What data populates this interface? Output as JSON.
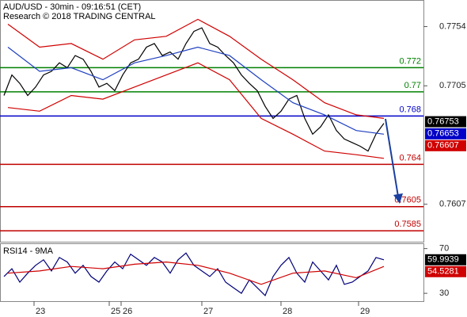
{
  "chart_data": [
    {
      "type": "line",
      "title": "AUD/USD - 30min - 09:16:51 (CET)",
      "subtitle": "Research © 2018 TRADING CENTRAL",
      "xlim": [
        0,
        53.5
      ],
      "xticks": [
        {
          "value": 4.3,
          "label": "23"
        },
        {
          "value": 13.8,
          "label": "25"
        },
        {
          "value": 15.3,
          "label": "26"
        },
        {
          "value": 25.5,
          "label": "27"
        },
        {
          "value": 35.5,
          "label": "28"
        },
        {
          "value": 45.3,
          "label": "29"
        }
      ],
      "ylim": [
        0.7576,
        0.7776
      ],
      "yticks": [
        0.7754,
        0.7705,
        0.7607
      ],
      "series": [
        {
          "color": "#000000",
          "x": [
            0.5,
            1.5,
            2.5,
            3.5,
            4.5,
            5.5,
            6.5,
            7.5,
            8.5,
            9.5,
            10.5,
            11.5,
            12.5,
            13.5,
            14.5,
            15.5,
            16.5,
            17.5,
            18.5,
            19.5,
            20.5,
            21.5,
            22.5,
            23.5,
            24.5,
            25.5,
            26.5,
            27.5,
            28.5,
            29.5,
            30.5,
            31.5,
            32.5,
            33.5,
            34.5,
            35.5,
            36.5,
            37.5,
            38.5,
            39.5,
            40.5,
            41.5,
            42.5,
            43.5,
            44.5,
            45.5,
            46.5,
            47.5,
            48.5
          ],
          "values": [
            0.7697,
            0.7714,
            0.7707,
            0.7697,
            0.7704,
            0.7714,
            0.7717,
            0.7724,
            0.772,
            0.773,
            0.7727,
            0.7717,
            0.7704,
            0.7707,
            0.7701,
            0.7714,
            0.7724,
            0.7727,
            0.7737,
            0.774,
            0.773,
            0.7733,
            0.7727,
            0.774,
            0.775,
            0.7753,
            0.774,
            0.7737,
            0.773,
            0.7724,
            0.7714,
            0.7707,
            0.7701,
            0.7688,
            0.7678,
            0.7684,
            0.7694,
            0.7697,
            0.7678,
            0.7665,
            0.7671,
            0.7681,
            0.7668,
            0.7661,
            0.7658,
            0.7655,
            0.7651,
            0.7665,
            0.7674
          ]
        },
        {
          "color": "#d00000",
          "x": [
            1,
            5,
            9,
            13,
            17,
            21,
            25,
            29,
            33,
            37,
            41,
            45,
            48.5
          ],
          "values": [
            0.7756,
            0.7737,
            0.774,
            0.7727,
            0.7743,
            0.7746,
            0.776,
            0.7746,
            0.7727,
            0.771,
            0.7691,
            0.7681,
            0.7678
          ]
        },
        {
          "color": "#2040c0",
          "x": [
            1,
            5,
            9,
            13,
            17,
            21,
            25,
            29,
            33,
            37,
            41,
            45,
            48.5
          ],
          "values": [
            0.7737,
            0.7717,
            0.772,
            0.771,
            0.7724,
            0.773,
            0.7737,
            0.773,
            0.771,
            0.7691,
            0.7681,
            0.7668,
            0.7665
          ]
        },
        {
          "color": "#d00000",
          "x": [
            1,
            5,
            9,
            13,
            17,
            21,
            25,
            29,
            33,
            37,
            41,
            45,
            48.5
          ],
          "values": [
            0.7687,
            0.7684,
            0.7697,
            0.7694,
            0.7704,
            0.7714,
            0.7724,
            0.771,
            0.7678,
            0.7665,
            0.7651,
            0.7648,
            0.7645
          ]
        }
      ],
      "levels": [
        {
          "value": 0.772,
          "color": "#008000"
        },
        {
          "value": 0.77,
          "color": "#008000"
        },
        {
          "value": 0.768,
          "color": "#0000c8"
        },
        {
          "value": 0.764,
          "color": "#c00000"
        },
        {
          "value": 0.7605,
          "color": "#c00000"
        },
        {
          "value": 0.7585,
          "color": "#c00000"
        }
      ],
      "last_values": [
        {
          "value": 0.76753,
          "color": "#000000"
        },
        {
          "value": 0.76653,
          "color": "#0000c8"
        },
        {
          "value": 0.76607,
          "color": "#d00000"
        }
      ]
    },
    {
      "type": "line",
      "title": "RSI14 - 9MA",
      "xlim": [
        0,
        53.5
      ],
      "ylim": [
        23,
        74
      ],
      "yticks": [
        70,
        30
      ],
      "series": [
        {
          "color": "#00007a",
          "x": [
            0.5,
            1.5,
            2.5,
            3.5,
            4.5,
            5.5,
            6.5,
            7.5,
            8.5,
            9.5,
            10.5,
            11.5,
            12.5,
            13.5,
            14.5,
            15.5,
            16.5,
            17.5,
            18.5,
            19.5,
            20.5,
            21.5,
            22.5,
            23.5,
            24.5,
            25.5,
            26.5,
            27.5,
            28.5,
            29.5,
            30.5,
            31.5,
            32.5,
            33.5,
            34.5,
            35.5,
            36.5,
            37.5,
            38.5,
            39.5,
            40.5,
            41.5,
            42.5,
            43.5,
            44.5,
            45.5,
            46.5,
            47.5,
            48.5
          ],
          "values": [
            45,
            52,
            40,
            48,
            55,
            60,
            50,
            62,
            58,
            48,
            55,
            45,
            40,
            50,
            58,
            52,
            65,
            60,
            55,
            62,
            58,
            48,
            60,
            66,
            55,
            50,
            45,
            52,
            40,
            35,
            30,
            42,
            35,
            28,
            45,
            55,
            62,
            48,
            40,
            58,
            50,
            42,
            55,
            38,
            40,
            45,
            50,
            62,
            60
          ]
        },
        {
          "color": "#d00000",
          "x": [
            1,
            5,
            9,
            13,
            17,
            21,
            25,
            29,
            33,
            37,
            41,
            45,
            48.5
          ],
          "values": [
            48,
            50,
            54,
            52,
            56,
            58,
            55,
            48,
            38,
            48,
            50,
            44,
            54
          ]
        }
      ],
      "last_values": [
        {
          "value": 59.9939,
          "color": "#000000"
        },
        {
          "value": 54.5281,
          "color": "#d00000"
        }
      ]
    }
  ]
}
